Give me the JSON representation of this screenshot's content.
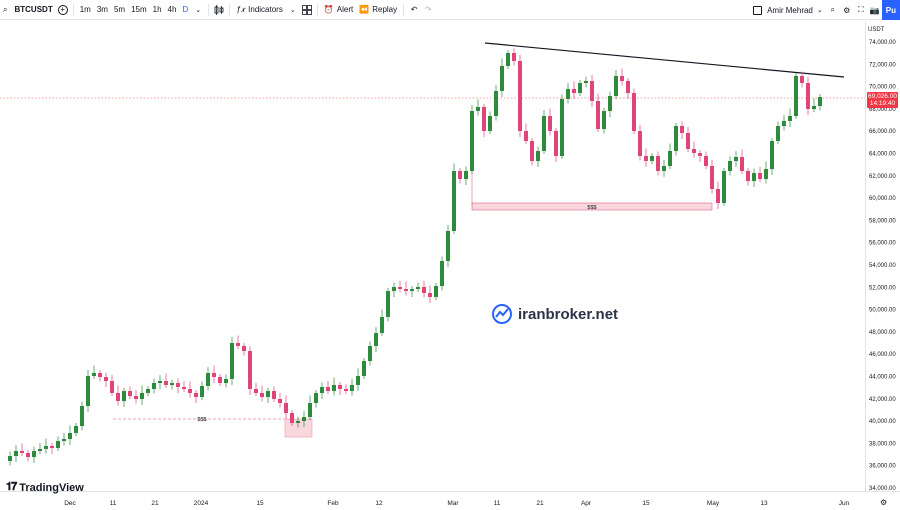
{
  "toolbar": {
    "symbol": "BTCUSDT",
    "timeframes": [
      "1m",
      "3m",
      "5m",
      "15m",
      "1h",
      "4h",
      "D"
    ],
    "active_timeframe": "D",
    "indicators_label": "Indicators",
    "alert_label": "Alert",
    "replay_label": "Replay",
    "user_name": "Amir Mehrad",
    "publish_label": "Pu"
  },
  "price_axis": {
    "currency": "USDT",
    "ticks": [
      "74,000.00",
      "72,000.00",
      "70,000.00",
      "68,000.00",
      "66,000.00",
      "64,000.00",
      "62,000.00",
      "60,000.00",
      "58,000.00",
      "56,000.00",
      "54,000.00",
      "52,000.00",
      "50,000.00",
      "48,000.00",
      "46,000.00",
      "44,000.00",
      "42,000.00",
      "40,000.00",
      "38,000.00",
      "36,000.00",
      "34,000.00"
    ],
    "last_price": "69,026.00",
    "countdown": "14:19:40"
  },
  "time_axis": {
    "ticks": [
      "Dec",
      "11",
      "21",
      "2024",
      "15",
      "Feb",
      "12",
      "Mar",
      "11",
      "21",
      "Apr",
      "15",
      "May",
      "13",
      "Jun"
    ]
  },
  "annotations": {
    "liquidity_label_1": "$$$",
    "liquidity_label_2": "$$$"
  },
  "watermark": {
    "text": "iranbroker.net"
  },
  "branding": {
    "text": "TradingView"
  },
  "colors": {
    "up": "#2e8b3e",
    "down": "#e0457a",
    "accent": "#2962ff",
    "price_line": "#f23645"
  }
}
